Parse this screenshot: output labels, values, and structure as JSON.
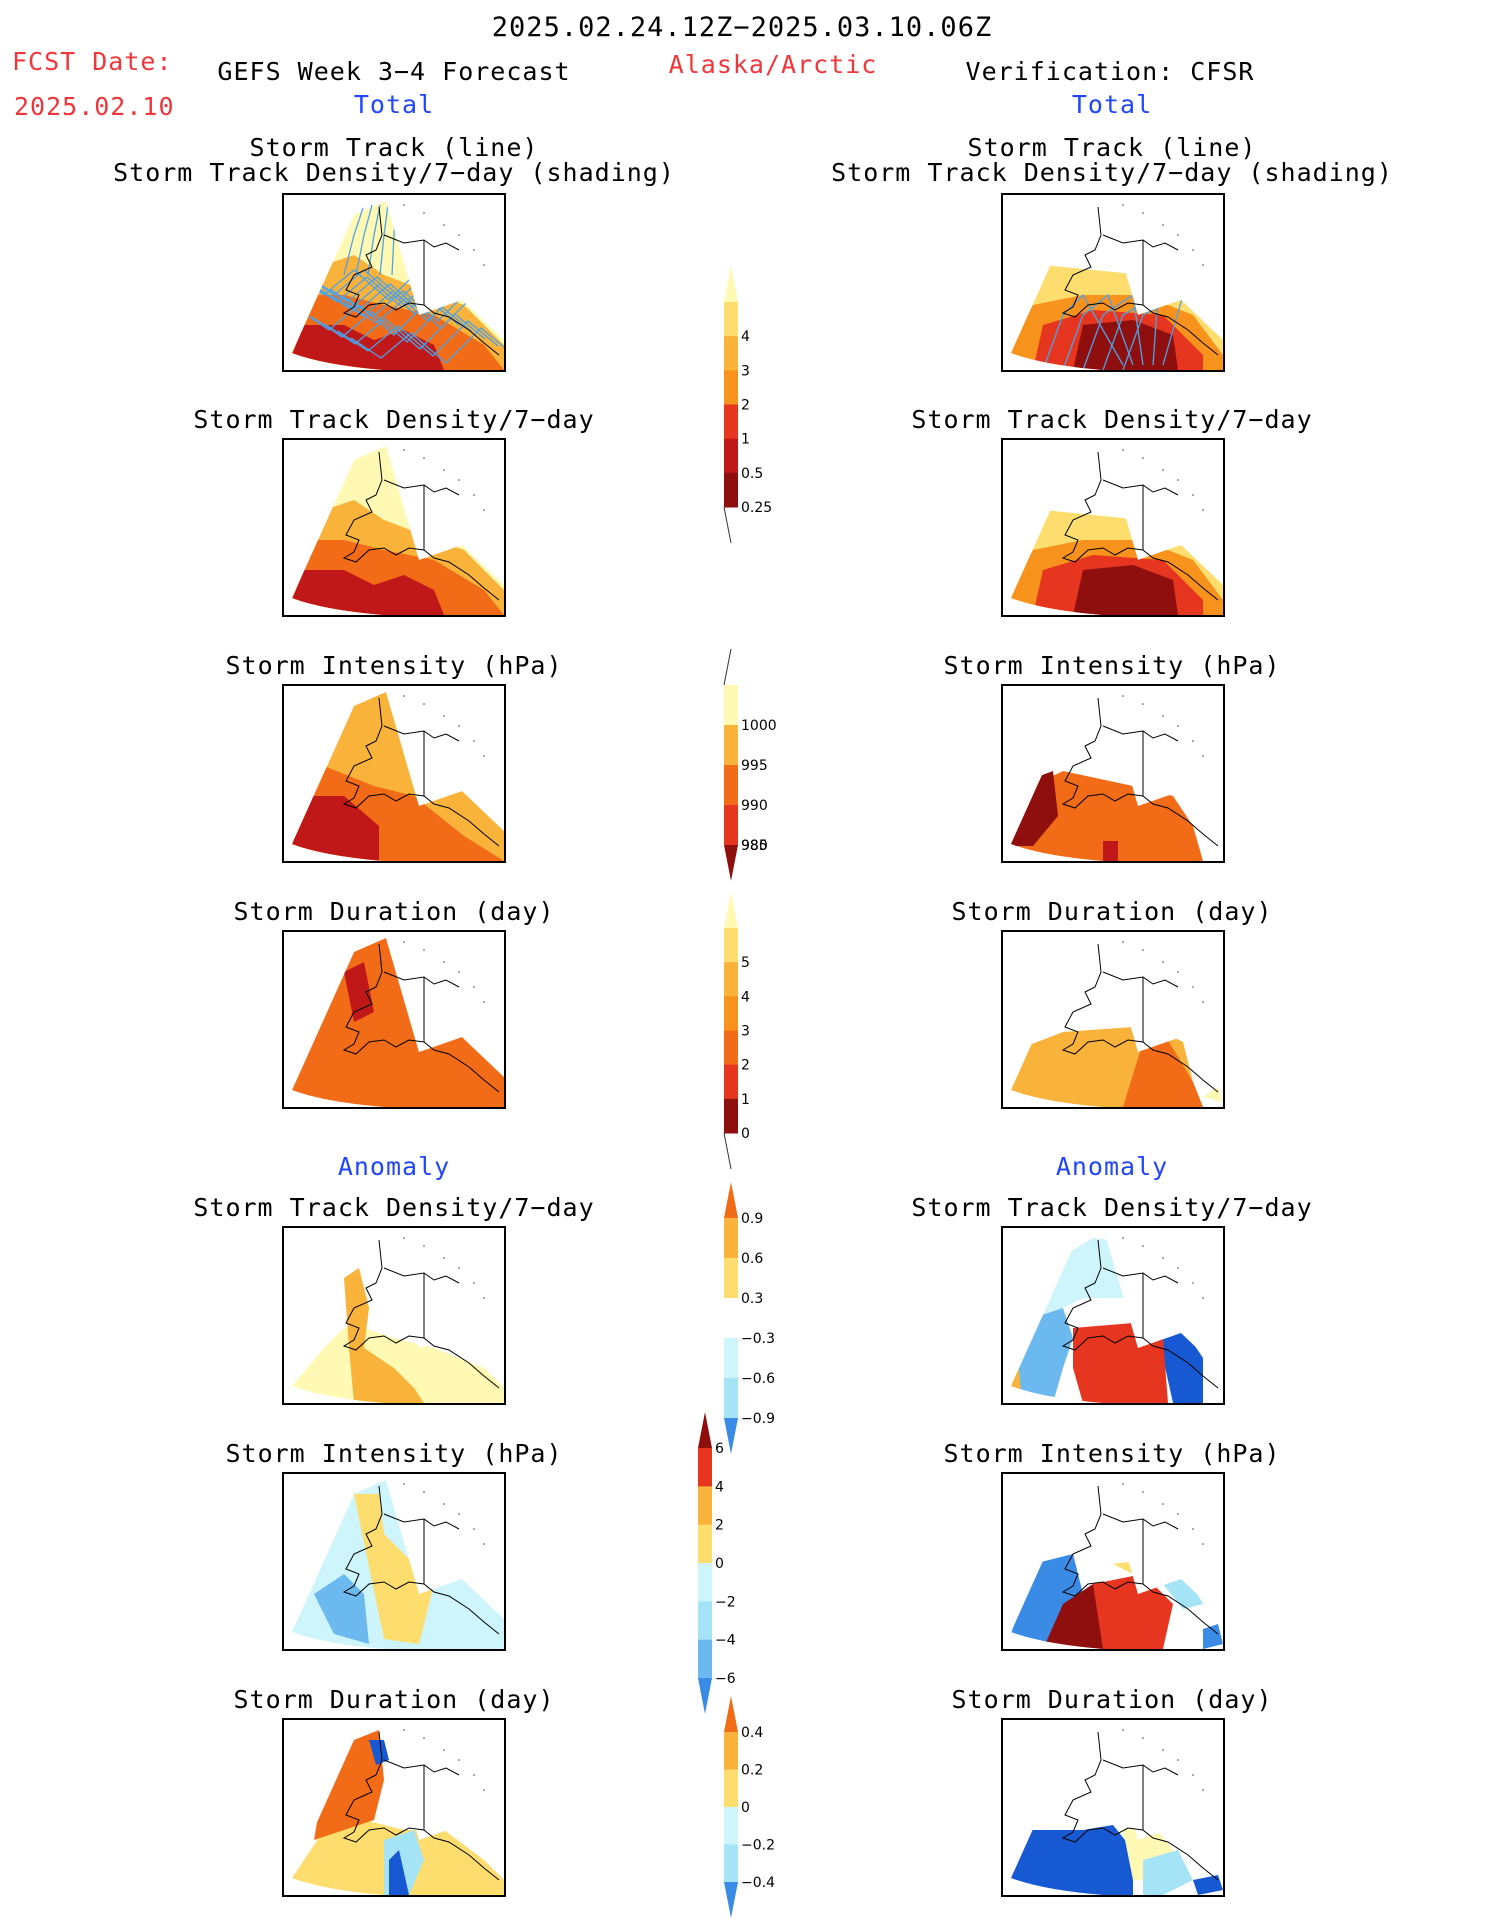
{
  "header": {
    "period": "2025.02.24.12Z−2025.03.10.06Z",
    "fcst_label": "FCST Date:",
    "fcst_date": "2025.02.10",
    "model": "GEFS Week 3−4 Forecast",
    "region": "Alaska/Arctic",
    "verification": "Verification: CFSR",
    "total_left": "Total",
    "total_right": "Total",
    "anomaly_left": "Anomaly",
    "anomaly_right": "Anomaly"
  },
  "panels": {
    "track_line": "Storm Track (line)",
    "track_shading": "Storm Track Density/7−day (shading)",
    "density": "Storm Track Density/7−day",
    "intensity": "Storm Intensity (hPa)",
    "duration": "Storm Duration (day)"
  },
  "colorbars": {
    "density": [
      "4",
      "3",
      "2",
      "1",
      "0.5",
      "0.25"
    ],
    "intensity": [
      "1000",
      "995",
      "990",
      "985",
      "980"
    ],
    "duration": [
      "5",
      "4",
      "3",
      "2",
      "1",
      "0"
    ],
    "density_anom": [
      "0.9",
      "0.6",
      "0.3",
      "−0.3",
      "−0.6",
      "−0.9"
    ],
    "intensity_anom": [
      "6",
      "4",
      "2",
      "0",
      "−2",
      "−4",
      "−6"
    ],
    "duration_anom": [
      "0.4",
      "0.2",
      "0",
      "−0.2",
      "−0.4"
    ]
  },
  "colors": {
    "warm": [
      "#fff9b3",
      "#fcdd6d",
      "#f9b23a",
      "#f7931d",
      "#f26b16",
      "#e63620",
      "#c01818",
      "#8f0f0f"
    ],
    "cool": [
      "#cdf5fb",
      "#a5e3f6",
      "#6cb9ef",
      "#3a8be6",
      "#1759d3"
    ],
    "title_red": "#f0363a",
    "title_blue": "#2046ff"
  }
}
